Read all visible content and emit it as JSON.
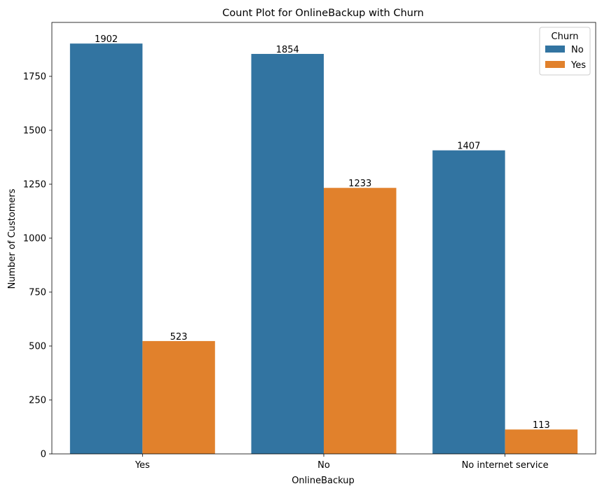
{
  "chart_data": {
    "type": "bar",
    "title": "Count Plot for OnlineBackup with Churn",
    "xlabel": "OnlineBackup",
    "ylabel": "Number of Customers",
    "categories": [
      "Yes",
      "No",
      "No internet service"
    ],
    "series": [
      {
        "name": "No",
        "color": "#3274a1",
        "values": [
          1902,
          1854,
          1407
        ]
      },
      {
        "name": "Yes",
        "color": "#e1812c",
        "values": [
          523,
          1233,
          113
        ]
      }
    ],
    "ylim": [
      0,
      2000
    ],
    "yticks": [
      0,
      250,
      500,
      750,
      1000,
      1250,
      1500,
      1750
    ],
    "legend": {
      "title": "Churn",
      "position": "top-right"
    },
    "grid": false
  }
}
